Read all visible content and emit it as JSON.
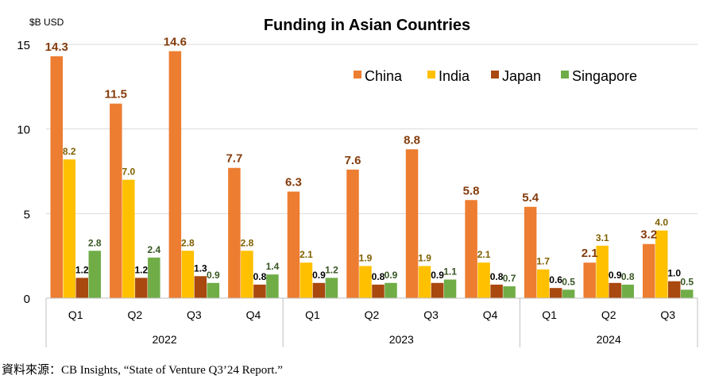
{
  "chart_data": {
    "type": "bar",
    "title": "Funding in Asian Countries",
    "ylabel": "$B USD",
    "xlabel": "",
    "ylim": [
      0,
      15
    ],
    "yticks": [
      0,
      5,
      10,
      15
    ],
    "grid": true,
    "legend_position": "top-right",
    "groups": [
      {
        "label": "2022",
        "categories": [
          "Q1",
          "Q2",
          "Q3",
          "Q4"
        ]
      },
      {
        "label": "2023",
        "categories": [
          "Q1",
          "Q2",
          "Q3",
          "Q4"
        ]
      },
      {
        "label": "2024",
        "categories": [
          "Q1",
          "Q2",
          "Q3"
        ]
      }
    ],
    "series": [
      {
        "name": "China",
        "color": "#ED7D31",
        "label_color": "#843C0C",
        "values": [
          14.3,
          11.5,
          14.6,
          7.7,
          6.3,
          7.6,
          8.8,
          5.8,
          5.4,
          2.1,
          3.2
        ]
      },
      {
        "name": "India",
        "color": "#FFC000",
        "label_color": "#7F6000",
        "values": [
          8.2,
          7.0,
          2.8,
          2.8,
          2.1,
          1.9,
          1.9,
          2.1,
          1.7,
          3.1,
          4.0
        ]
      },
      {
        "name": "Japan",
        "color": "#A9480F",
        "label_color": "#000000",
        "values": [
          1.2,
          1.2,
          1.3,
          0.8,
          0.9,
          0.8,
          0.9,
          0.8,
          0.6,
          0.9,
          1.0
        ]
      },
      {
        "name": "Singapore",
        "color": "#70AD47",
        "label_color": "#375623",
        "values": [
          2.8,
          2.4,
          0.9,
          1.4,
          1.2,
          0.9,
          1.1,
          0.7,
          0.5,
          0.8,
          0.5
        ]
      }
    ]
  },
  "source": "資料來源：CB Insights, “State of Venture Q3’24 Report.”"
}
